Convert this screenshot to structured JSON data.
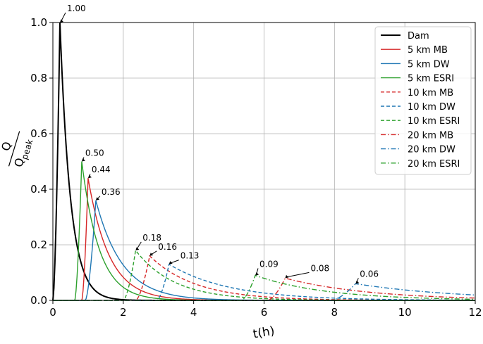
{
  "chart_data": {
    "type": "line",
    "xlabel": "t(h)",
    "ylabel": {
      "numerator": "Q",
      "denominator_base": "Q",
      "denominator_sub": "peak"
    },
    "xlim": [
      0,
      12
    ],
    "ylim": [
      0,
      1.0
    ],
    "xticks": [
      "0",
      "2",
      "4",
      "6",
      "8",
      "10",
      "12"
    ],
    "yticks": [
      "0.0",
      "0.2",
      "0.4",
      "0.6",
      "0.8",
      "1.0"
    ],
    "grid": true,
    "legend_position": "top-right",
    "series": [
      {
        "name": "Dam",
        "color": "#000000",
        "dash": "solid",
        "t0": 0.0,
        "tp": 0.2,
        "peak": 1.0,
        "decay": 0.3,
        "label": "1.00"
      },
      {
        "name": "5 km MB",
        "color": "#d62728",
        "dash": "solid",
        "t0": 0.82,
        "tp": 1.0,
        "peak": 0.44,
        "decay": 0.6,
        "label": "0.44"
      },
      {
        "name": "5 km DW",
        "color": "#1f77b4",
        "dash": "solid",
        "t0": 0.92,
        "tp": 1.22,
        "peak": 0.36,
        "decay": 0.75,
        "label": "0.36"
      },
      {
        "name": "5 km ESRI",
        "color": "#2ca02c",
        "dash": "solid",
        "t0": 0.62,
        "tp": 0.82,
        "peak": 0.5,
        "decay": 0.5,
        "label": "0.50"
      },
      {
        "name": "10 km MB",
        "color": "#d62728",
        "dash": "dashed",
        "t0": 2.35,
        "tp": 2.75,
        "peak": 0.16,
        "decay": 1.3,
        "label": "0.16"
      },
      {
        "name": "10 km DW",
        "color": "#1f77b4",
        "dash": "dashed",
        "t0": 2.95,
        "tp": 3.3,
        "peak": 0.13,
        "decay": 1.7,
        "label": "0.13"
      },
      {
        "name": "10 km ESRI",
        "color": "#2ca02c",
        "dash": "dashed",
        "t0": 2.0,
        "tp": 2.35,
        "peak": 0.18,
        "decay": 1.1,
        "label": "0.18"
      },
      {
        "name": "20 km MB",
        "color": "#d62728",
        "dash": "dashdot",
        "t0": 6.1,
        "tp": 6.6,
        "peak": 0.08,
        "decay": 2.4,
        "label": "0.08"
      },
      {
        "name": "20 km DW",
        "color": "#1f77b4",
        "dash": "dashdot",
        "t0": 7.9,
        "tp": 8.6,
        "peak": 0.06,
        "decay": 3.0,
        "label": "0.06"
      },
      {
        "name": "20 km ESRI",
        "color": "#2ca02c",
        "dash": "dashdot",
        "t0": 5.35,
        "tp": 5.75,
        "peak": 0.09,
        "decay": 2.0,
        "label": "0.09"
      }
    ]
  }
}
